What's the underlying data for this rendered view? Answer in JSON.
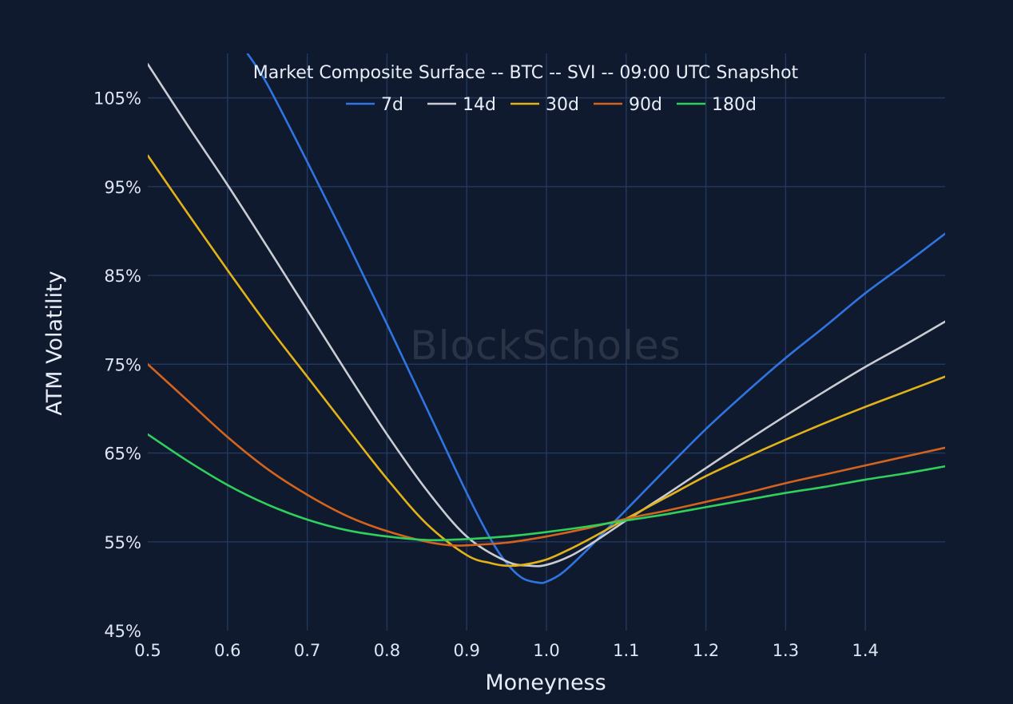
{
  "chart_data": {
    "type": "line",
    "title": "Market Composite Surface -- BTC -- SVI -- 09:00 UTC Snapshot",
    "xlabel": "Moneyness",
    "ylabel": "ATM Volatility",
    "watermark": "BlockScholes",
    "xlim": [
      0.5,
      1.5
    ],
    "ylim": [
      45,
      110
    ],
    "x_ticks": [
      0.5,
      0.6,
      0.7,
      0.8,
      0.9,
      1.0,
      1.1,
      1.2,
      1.3,
      1.4
    ],
    "x_tick_labels": [
      "0.5",
      "0.6",
      "0.7",
      "0.8",
      "0.9",
      "1.0",
      "1.1",
      "1.2",
      "1.3",
      "1.4"
    ],
    "y_ticks": [
      45,
      55,
      65,
      75,
      85,
      95,
      105
    ],
    "y_tick_labels": [
      "45%",
      "55%",
      "65%",
      "75%",
      "85%",
      "95%",
      "105%"
    ],
    "grid": true,
    "legend_position": "top-center",
    "background_color": "#0f1a2e",
    "series": [
      {
        "name": "7d",
        "color": "#2f74e0",
        "x": [
          0.625,
          0.65,
          0.7,
          0.75,
          0.8,
          0.85,
          0.9,
          0.93,
          0.95,
          0.97,
          0.99,
          1.0,
          1.02,
          1.05,
          1.08,
          1.1,
          1.15,
          1.2,
          1.25,
          1.3,
          1.35,
          1.4,
          1.45,
          1.5
        ],
        "values": [
          110.0,
          106.5,
          97.8,
          88.8,
          79.5,
          70.0,
          60.5,
          55.3,
          52.6,
          50.9,
          50.4,
          50.5,
          51.5,
          54.0,
          56.8,
          58.6,
          63.2,
          67.7,
          71.8,
          75.7,
          79.3,
          83.0,
          86.3,
          89.7
        ]
      },
      {
        "name": "14d",
        "color": "#c9ccd3",
        "x": [
          0.5,
          0.55,
          0.6,
          0.65,
          0.7,
          0.75,
          0.8,
          0.85,
          0.9,
          0.95,
          0.98,
          1.0,
          1.03,
          1.06,
          1.1,
          1.15,
          1.2,
          1.25,
          1.3,
          1.35,
          1.4,
          1.45,
          1.5
        ],
        "values": [
          108.8,
          101.9,
          95.2,
          88.2,
          81.1,
          74.0,
          67.1,
          60.8,
          55.6,
          52.8,
          52.3,
          52.4,
          53.4,
          55.0,
          57.4,
          60.3,
          63.3,
          66.3,
          69.2,
          72.0,
          74.7,
          77.2,
          79.8
        ]
      },
      {
        "name": "30d",
        "color": "#e2b219",
        "x": [
          0.5,
          0.55,
          0.6,
          0.65,
          0.7,
          0.75,
          0.8,
          0.85,
          0.9,
          0.93,
          0.95,
          0.97,
          1.0,
          1.03,
          1.06,
          1.1,
          1.15,
          1.2,
          1.25,
          1.3,
          1.35,
          1.4,
          1.45,
          1.5
        ],
        "values": [
          98.5,
          92.0,
          85.6,
          79.4,
          73.6,
          67.8,
          62.1,
          57.0,
          53.5,
          52.6,
          52.3,
          52.4,
          53.0,
          54.2,
          55.6,
          57.6,
          60.0,
          62.4,
          64.5,
          66.5,
          68.4,
          70.2,
          71.9,
          73.6
        ]
      },
      {
        "name": "90d",
        "color": "#d3631d",
        "x": [
          0.5,
          0.55,
          0.6,
          0.65,
          0.7,
          0.75,
          0.8,
          0.85,
          0.88,
          0.9,
          0.95,
          1.0,
          1.05,
          1.1,
          1.15,
          1.2,
          1.25,
          1.3,
          1.35,
          1.4,
          1.45,
          1.5
        ],
        "values": [
          75.0,
          70.9,
          66.8,
          63.2,
          60.3,
          57.9,
          56.2,
          55.0,
          54.6,
          54.6,
          54.9,
          55.6,
          56.5,
          57.6,
          58.5,
          59.5,
          60.5,
          61.6,
          62.6,
          63.6,
          64.6,
          65.6
        ]
      },
      {
        "name": "180d",
        "color": "#2fd05b",
        "x": [
          0.5,
          0.55,
          0.6,
          0.65,
          0.7,
          0.75,
          0.8,
          0.85,
          0.9,
          0.95,
          1.0,
          1.05,
          1.1,
          1.15,
          1.2,
          1.25,
          1.3,
          1.35,
          1.4,
          1.45,
          1.5
        ],
        "values": [
          67.1,
          64.1,
          61.4,
          59.2,
          57.5,
          56.3,
          55.6,
          55.2,
          55.3,
          55.6,
          56.1,
          56.7,
          57.4,
          58.1,
          58.9,
          59.7,
          60.5,
          61.2,
          62.0,
          62.7,
          63.5
        ]
      }
    ]
  }
}
